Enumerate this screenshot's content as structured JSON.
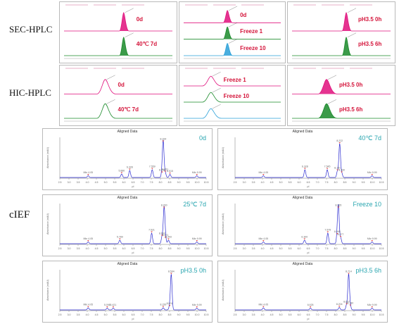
{
  "row_labels": {
    "sec": "SEC-HPLC",
    "hic": "HIC-HPLC",
    "cief": "cIEF"
  },
  "colors": {
    "magenta": "#e0117d",
    "green": "#1a8a2a",
    "cyan": "#2aa0d8",
    "blue": "#2a2ad0",
    "label_red": "#d4143a",
    "teal": "#2aa6b0"
  },
  "sec_panels": [
    {
      "id": "sec1",
      "traces": [
        {
          "label": "0d",
          "color": "magenta",
          "peak": 0.55
        },
        {
          "label": "40℃ 7d",
          "color": "green",
          "peak": 0.55
        }
      ]
    },
    {
      "id": "sec2",
      "traces": [
        {
          "label": "0d",
          "color": "magenta",
          "peak": 0.45
        },
        {
          "label": "Freeze 1",
          "color": "green",
          "peak": 0.45
        },
        {
          "label": "Freeze 10",
          "color": "cyan",
          "peak": 0.45
        }
      ]
    },
    {
      "id": "sec3",
      "traces": [
        {
          "label": "pH3.5 0h",
          "color": "magenta",
          "peak": 0.55
        },
        {
          "label": "pH3.5 6h",
          "color": "green",
          "peak": 0.55
        }
      ]
    }
  ],
  "hic_panels": [
    {
      "id": "hic1",
      "traces": [
        {
          "label": "0d",
          "color": "magenta",
          "peak": 0.38
        },
        {
          "label": "40℃ 7d",
          "color": "green",
          "peak": 0.38
        }
      ]
    },
    {
      "id": "hic2",
      "traces": [
        {
          "label": "Freeze 1",
          "color": "magenta",
          "peak": 0.28
        },
        {
          "label": "Freeze 10",
          "color": "green",
          "peak": 0.28
        },
        {
          "label": "",
          "color": "cyan",
          "peak": 0.28
        }
      ]
    },
    {
      "id": "hic3",
      "traces": [
        {
          "label": "pH3.5 0h",
          "color": "magenta",
          "peak": 0.35
        },
        {
          "label": "pH3.5 6h",
          "color": "green",
          "peak": 0.35
        }
      ]
    }
  ],
  "cief_common": {
    "title": "Aligned Data",
    "xlabel": "pI",
    "ylabel": "Absorbance (mAU)",
    "x_ticks": [
      "2.5",
      "3.0",
      "3.5",
      "4.0",
      "4.5",
      "5.0",
      "5.5",
      "6.0",
      "6.5",
      "7.0",
      "7.5",
      "8.0",
      "8.5",
      "9.0",
      "9.5",
      "10.0",
      "10.5"
    ]
  },
  "chart_data": [
    {
      "type": "line",
      "title": "0d",
      "xlabel": "pI",
      "ylabel": "Absorbance (mAU)",
      "xlim": [
        2.5,
        10.5
      ],
      "peaks": [
        {
          "x": 4.05,
          "h": 0.05,
          "label": "Mkr 4.05"
        },
        {
          "x": 5.88,
          "h": 0.1,
          "label": "5.880"
        },
        {
          "x": 6.32,
          "h": 0.2,
          "label": "6.328"
        },
        {
          "x": 7.55,
          "h": 0.22,
          "label": "7.559"
        },
        {
          "x": 8.09,
          "h": 0.12,
          "label": "8.091"
        },
        {
          "x": 8.15,
          "h": 1.0,
          "label": "8.154"
        },
        {
          "x": 8.26,
          "h": 0.14,
          "label": "8.261"
        },
        {
          "x": 8.52,
          "h": 0.09,
          "label": "8.515"
        },
        {
          "x": 9.99,
          "h": 0.05,
          "label": "Mkr 9.99"
        }
      ]
    },
    {
      "type": "line",
      "title": "40℃ 7d",
      "xlabel": "pI",
      "ylabel": "Absorbance (mAU)",
      "xlim": [
        2.5,
        10.5
      ],
      "peaks": [
        {
          "x": 4.05,
          "h": 0.05,
          "label": "Mkr 4.05"
        },
        {
          "x": 6.32,
          "h": 0.22,
          "label": "6.328"
        },
        {
          "x": 7.54,
          "h": 0.22,
          "label": "7.545"
        },
        {
          "x": 8.1,
          "h": 0.18,
          "label": "8.101"
        },
        {
          "x": 8.22,
          "h": 0.95,
          "label": "8.222"
        },
        {
          "x": 8.33,
          "h": 0.12,
          "label": "8.330"
        },
        {
          "x": 9.99,
          "h": 0.05,
          "label": "Mkr 9.99"
        }
      ]
    },
    {
      "type": "line",
      "title": "25℃ 7d",
      "xlabel": "pI",
      "ylabel": "Absorbance (mAU)",
      "xlim": [
        2.5,
        10.5
      ],
      "peaks": [
        {
          "x": 4.05,
          "h": 0.05,
          "label": "Mkr 4.05"
        },
        {
          "x": 5.78,
          "h": 0.1,
          "label": "5.789"
        },
        {
          "x": 7.52,
          "h": 0.3,
          "label": "7.521"
        },
        {
          "x": 8.09,
          "h": 0.2,
          "label": "8.092"
        },
        {
          "x": 8.2,
          "h": 1.0,
          "label": "8.200"
        },
        {
          "x": 8.27,
          "h": 0.15,
          "label": "8.271"
        },
        {
          "x": 8.44,
          "h": 0.1,
          "label": "8.443"
        },
        {
          "x": 9.99,
          "h": 0.05,
          "label": "Mkr 9.99"
        }
      ]
    },
    {
      "type": "line",
      "title": "Freeze 10",
      "xlabel": "pI",
      "ylabel": "Absorbance (mAU)",
      "xlim": [
        2.5,
        10.5
      ],
      "peaks": [
        {
          "x": 4.05,
          "h": 0.05,
          "label": "Mkr 4.05"
        },
        {
          "x": 6.3,
          "h": 0.1,
          "label": "6.300"
        },
        {
          "x": 7.57,
          "h": 0.3,
          "label": "7.575"
        },
        {
          "x": 8.09,
          "h": 0.25,
          "label": "8.095"
        },
        {
          "x": 8.15,
          "h": 1.0,
          "label": "8.155"
        },
        {
          "x": 8.27,
          "h": 0.17,
          "label": "8.277"
        },
        {
          "x": 9.99,
          "h": 0.05,
          "label": "Mkr 9.99"
        }
      ]
    },
    {
      "type": "line",
      "title": "pH3.5 0h",
      "xlabel": "pI",
      "ylabel": "Absorbance (mAU)",
      "xlim": [
        2.5,
        10.5
      ],
      "peaks": [
        {
          "x": 4.05,
          "h": 0.06,
          "label": "Mkr 4.05"
        },
        {
          "x": 5.09,
          "h": 0.05,
          "label": "5.098"
        },
        {
          "x": 5.42,
          "h": 0.05,
          "label": "5.421"
        },
        {
          "x": 8.15,
          "h": 0.06,
          "label": "8.156"
        },
        {
          "x": 8.5,
          "h": 0.09,
          "label": "8.501"
        },
        {
          "x": 8.59,
          "h": 1.0,
          "label": "8.594"
        },
        {
          "x": 9.99,
          "h": 0.05,
          "label": "Mkr 9.99"
        }
      ]
    },
    {
      "type": "line",
      "title": "pH3.5 6h",
      "xlabel": "pI",
      "ylabel": "Absorbance (mAU)",
      "xlim": [
        2.5,
        10.5
      ],
      "peaks": [
        {
          "x": 4.05,
          "h": 0.06,
          "label": "Mkr 4.05"
        },
        {
          "x": 6.62,
          "h": 0.05,
          "label": "6.625"
        },
        {
          "x": 8.2,
          "h": 0.07,
          "label": "8.204"
        },
        {
          "x": 8.6,
          "h": 0.14,
          "label": "8.607"
        },
        {
          "x": 8.71,
          "h": 1.0,
          "label": "8.714"
        },
        {
          "x": 8.8,
          "h": 0.1,
          "label": "8.790"
        },
        {
          "x": 9.99,
          "h": 0.05,
          "label": "Mkr 9.99"
        }
      ]
    }
  ]
}
